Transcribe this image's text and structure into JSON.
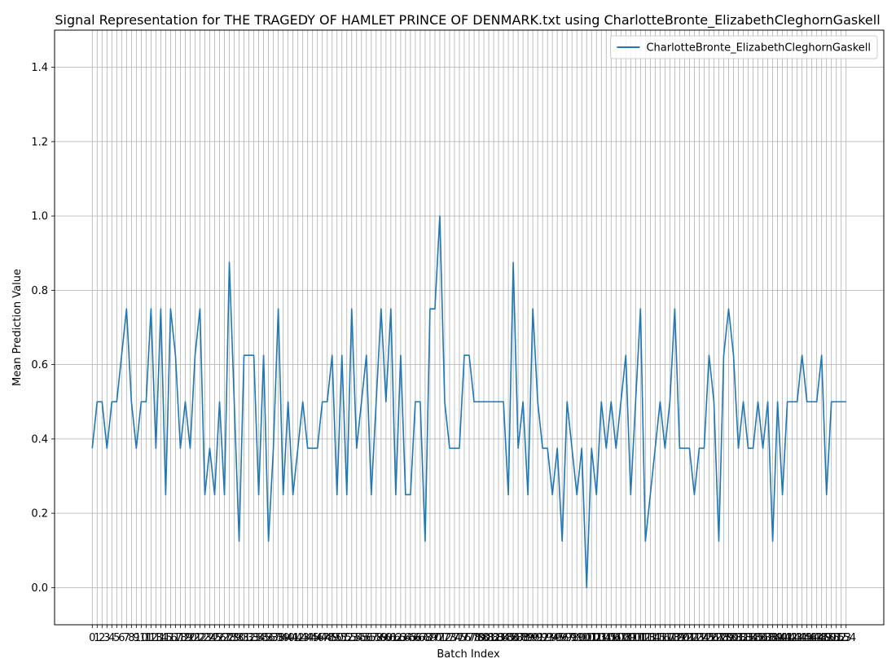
{
  "chart_data": {
    "type": "line",
    "title": "Signal Representation for THE TRAGEDY OF HAMLET PRINCE OF DENMARK.txt using CharlotteBronte_ElizabethCleghornGaskell",
    "xlabel": "Batch Index",
    "ylabel": "Mean Prediction Value",
    "xlim": [
      -7.7,
      161.7
    ],
    "ylim": [
      -0.1,
      1.5
    ],
    "yticks": [
      0.0,
      0.2,
      0.4,
      0.6,
      0.8,
      1.0,
      1.2,
      1.4
    ],
    "ytick_labels": [
      "0.0",
      "0.2",
      "0.4",
      "0.6",
      "0.8",
      "1.0",
      "1.2",
      "1.4"
    ],
    "grid": true,
    "legend_position": "top-right",
    "series": [
      {
        "name": "CharlotteBronte_ElizabethCleghornGaskell",
        "color": "#1f77b4",
        "values": [
          0.375,
          0.5,
          0.5,
          0.375,
          0.5,
          0.5,
          0.625,
          0.75,
          0.5,
          0.375,
          0.5,
          0.5,
          0.75,
          0.375,
          0.75,
          0.25,
          0.75,
          0.625,
          0.375,
          0.5,
          0.375,
          0.625,
          0.75,
          0.25,
          0.375,
          0.25,
          0.5,
          0.25,
          0.875,
          0.5,
          0.125,
          0.625,
          0.625,
          0.625,
          0.25,
          0.625,
          0.125,
          0.375,
          0.75,
          0.25,
          0.5,
          0.25,
          0.375,
          0.5,
          0.375,
          0.375,
          0.375,
          0.5,
          0.5,
          0.625,
          0.25,
          0.625,
          0.25,
          0.75,
          0.375,
          0.5,
          0.625,
          0.25,
          0.5,
          0.75,
          0.5,
          0.75,
          0.25,
          0.625,
          0.25,
          0.25,
          0.5,
          0.5,
          0.125,
          0.75,
          0.75,
          1.0,
          0.5,
          0.375,
          0.375,
          0.375,
          0.625,
          0.625,
          0.5,
          0.5,
          0.5,
          0.5,
          0.5,
          0.5,
          0.5,
          0.25,
          0.875,
          0.375,
          0.5,
          0.25,
          0.75,
          0.5,
          0.375,
          0.375,
          0.25,
          0.375,
          0.125,
          0.5,
          0.375,
          0.25,
          0.375,
          0.0,
          0.375,
          0.25,
          0.5,
          0.375,
          0.5,
          0.375,
          0.5,
          0.625,
          0.25,
          0.5,
          0.75,
          0.125,
          0.25,
          0.375,
          0.5,
          0.375,
          0.5,
          0.75,
          0.375,
          0.375,
          0.375,
          0.25,
          0.375,
          0.375,
          0.625,
          0.5,
          0.125,
          0.625,
          0.75,
          0.625,
          0.375,
          0.5,
          0.375,
          0.375,
          0.5,
          0.375,
          0.5,
          0.125,
          0.5,
          0.25,
          0.5,
          0.5,
          0.5,
          0.625,
          0.5,
          0.5,
          0.5,
          0.625,
          0.25,
          0.5,
          0.5,
          0.5,
          0.5
        ]
      }
    ]
  }
}
